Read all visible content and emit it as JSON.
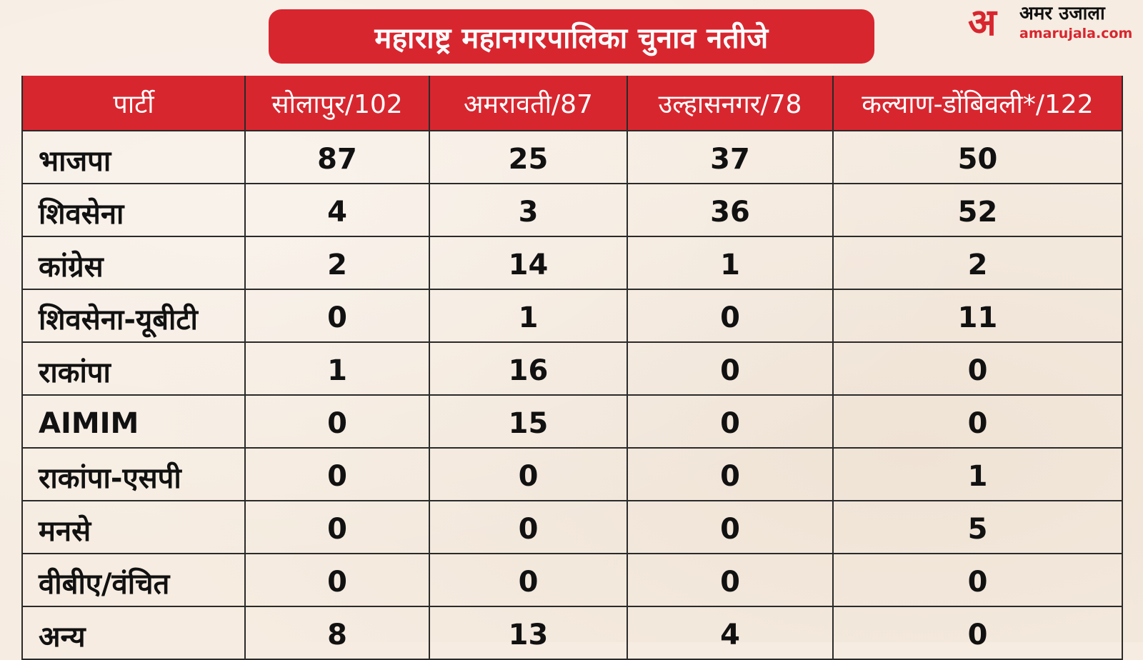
{
  "title": "महाराष्ट्र महानगरपालिका चुनाव नतीजे",
  "logo": {
    "mark": "अ",
    "name": "अमर उजाला",
    "url": "amarujala.com"
  },
  "colors": {
    "accent": "#d8262f",
    "background": "#f6ece1"
  },
  "table": {
    "headers": [
      "पार्टी",
      "सोलापुर/102",
      "अमरावती/87",
      "उल्हासनगर/78",
      "कल्याण-डोंबिवली*/122"
    ],
    "rows": [
      {
        "party": "भाजपा",
        "values": [
          "87",
          "25",
          "37",
          "50"
        ]
      },
      {
        "party": "शिवसेना",
        "values": [
          "4",
          "3",
          "36",
          "52"
        ]
      },
      {
        "party": "कांग्रेस",
        "values": [
          "2",
          "14",
          "1",
          "2"
        ]
      },
      {
        "party": "शिवसेना-यूबीटी",
        "values": [
          "0",
          "1",
          "0",
          "11"
        ]
      },
      {
        "party": "राकांपा",
        "values": [
          "1",
          "16",
          "0",
          "0"
        ]
      },
      {
        "party": "AIMIM",
        "values": [
          "0",
          "15",
          "0",
          "0"
        ]
      },
      {
        "party": "राकांपा-एसपी",
        "values": [
          "0",
          "0",
          "0",
          "1"
        ]
      },
      {
        "party": "मनसे",
        "values": [
          "0",
          "0",
          "0",
          "5"
        ]
      },
      {
        "party": "वीबीए/वंचित",
        "values": [
          "0",
          "0",
          "0",
          "0"
        ]
      },
      {
        "party": "अन्य",
        "values": [
          "8",
          "13",
          "4",
          "0"
        ]
      }
    ]
  }
}
